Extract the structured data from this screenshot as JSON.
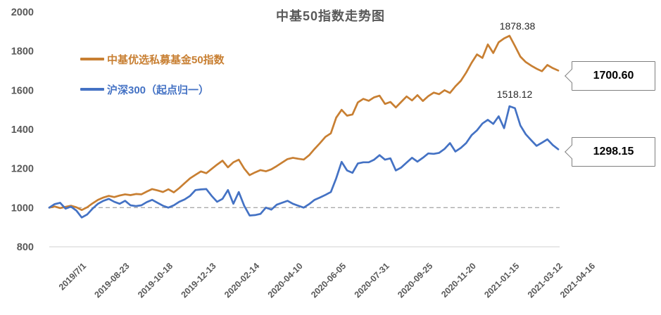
{
  "chart_data": {
    "type": "line",
    "title": "中基50指数走势图",
    "xlabel": "",
    "ylabel": "",
    "ylim": [
      800,
      2000
    ],
    "y_ticks": [
      800,
      1000,
      1200,
      1400,
      1600,
      1800,
      2000
    ],
    "baseline_value": 1000,
    "grid": false,
    "legend_position": "inside-top-left",
    "n_points": 95,
    "x_tick_labels": [
      "2019/7/1",
      "2019-08-23",
      "2019-10-18",
      "2019-12-13",
      "2020-02-14",
      "2020-04-10",
      "2020-06-05",
      "2020-07-31",
      "2020-09-25",
      "2020-11-20",
      "2021-01-15",
      "2021-03-12",
      "2021-04-16"
    ],
    "x_tick_indices": [
      0,
      8,
      16,
      24,
      32,
      40,
      48,
      56,
      64,
      72,
      80,
      88,
      94
    ],
    "colors": {
      "axis_line": "#d9d9d9",
      "baseline_dash": "#ababab",
      "tick_text": "#595959",
      "annotation_text": "#262626",
      "callout_border": "#7f7f7f"
    },
    "series": [
      {
        "name": "中基优选私募基金50指数",
        "color": "#c87f32",
        "peak_label": "1878.38",
        "end_label": "1700.60",
        "values": [
          1000,
          1006,
          998,
          1004,
          1010,
          1002,
          988,
          1002,
          1022,
          1040,
          1052,
          1060,
          1054,
          1062,
          1068,
          1064,
          1070,
          1068,
          1082,
          1095,
          1088,
          1080,
          1094,
          1078,
          1100,
          1125,
          1150,
          1168,
          1185,
          1176,
          1198,
          1220,
          1240,
          1206,
          1232,
          1245,
          1200,
          1166,
          1180,
          1192,
          1186,
          1196,
          1212,
          1230,
          1248,
          1255,
          1250,
          1246,
          1268,
          1300,
          1330,
          1362,
          1380,
          1460,
          1500,
          1470,
          1476,
          1538,
          1556,
          1546,
          1564,
          1572,
          1530,
          1540,
          1512,
          1540,
          1568,
          1548,
          1575,
          1545,
          1570,
          1588,
          1580,
          1600,
          1586,
          1620,
          1648,
          1690,
          1740,
          1783,
          1765,
          1834,
          1790,
          1845,
          1865,
          1878.38,
          1826,
          1772,
          1744,
          1726,
          1710,
          1697,
          1729,
          1713,
          1700.6
        ]
      },
      {
        "name": "沪深300（起点归一）",
        "color": "#4472c4",
        "peak_label": "1518.12",
        "end_label": "1298.15",
        "values": [
          1000,
          1018,
          1025,
          995,
          1005,
          985,
          950,
          965,
          995,
          1020,
          1035,
          1045,
          1030,
          1020,
          1035,
          1012,
          1008,
          1012,
          1028,
          1040,
          1025,
          1010,
          1000,
          1012,
          1030,
          1042,
          1060,
          1090,
          1093,
          1095,
          1060,
          1030,
          1045,
          1090,
          1020,
          1080,
          1010,
          960,
          962,
          968,
          1000,
          990,
          1015,
          1025,
          1035,
          1020,
          1010,
          1000,
          1018,
          1040,
          1052,
          1065,
          1080,
          1150,
          1234,
          1190,
          1178,
          1226,
          1232,
          1232,
          1245,
          1268,
          1245,
          1252,
          1190,
          1205,
          1230,
          1255,
          1235,
          1255,
          1277,
          1275,
          1280,
          1300,
          1330,
          1287,
          1305,
          1330,
          1370,
          1395,
          1430,
          1449,
          1428,
          1467,
          1406,
          1518.12,
          1508,
          1420,
          1375,
          1345,
          1316,
          1332,
          1349,
          1320,
          1298.15
        ]
      }
    ]
  }
}
